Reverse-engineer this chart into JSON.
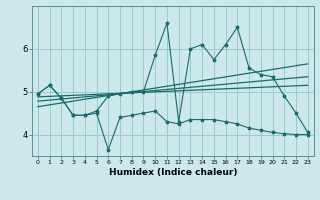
{
  "xlabel": "Humidex (Indice chaleur)",
  "bg_color": "#cce8e8",
  "line_color": "#1a6b6b",
  "grid_color": "#99cccc",
  "xlim": [
    -0.5,
    23.5
  ],
  "ylim": [
    3.5,
    7.0
  ],
  "yticks": [
    4,
    5,
    6
  ],
  "xticks": [
    0,
    1,
    2,
    3,
    4,
    5,
    6,
    7,
    8,
    9,
    10,
    11,
    12,
    13,
    14,
    15,
    16,
    17,
    18,
    19,
    20,
    21,
    22,
    23
  ],
  "series1_x": [
    0,
    1,
    2,
    3,
    4,
    5,
    6,
    7,
    8,
    9,
    10,
    11,
    12,
    13,
    14,
    15,
    16,
    17,
    18,
    19,
    20,
    21,
    22,
    23
  ],
  "series1_y": [
    4.95,
    5.15,
    4.85,
    4.45,
    4.45,
    4.5,
    3.65,
    4.4,
    4.45,
    4.5,
    4.55,
    4.3,
    4.25,
    4.35,
    4.35,
    4.35,
    4.3,
    4.25,
    4.15,
    4.1,
    4.05,
    4.02,
    4.0,
    4.0
  ],
  "series2_x": [
    0,
    1,
    2,
    3,
    4,
    5,
    6,
    7,
    8,
    9,
    10,
    11,
    12,
    13,
    14,
    15,
    16,
    17,
    18,
    19,
    20,
    21,
    22,
    23
  ],
  "series2_y": [
    4.95,
    5.15,
    4.85,
    4.45,
    4.45,
    4.55,
    4.9,
    4.95,
    5.0,
    5.0,
    5.85,
    6.6,
    4.3,
    6.0,
    6.1,
    5.75,
    6.1,
    6.5,
    5.55,
    5.4,
    5.35,
    4.9,
    4.5,
    4.05
  ],
  "trend1_x": [
    0,
    23
  ],
  "trend1_y": [
    4.88,
    5.15
  ],
  "trend2_x": [
    0,
    23
  ],
  "trend2_y": [
    4.78,
    5.35
  ],
  "trend3_x": [
    0,
    23
  ],
  "trend3_y": [
    4.65,
    5.65
  ]
}
